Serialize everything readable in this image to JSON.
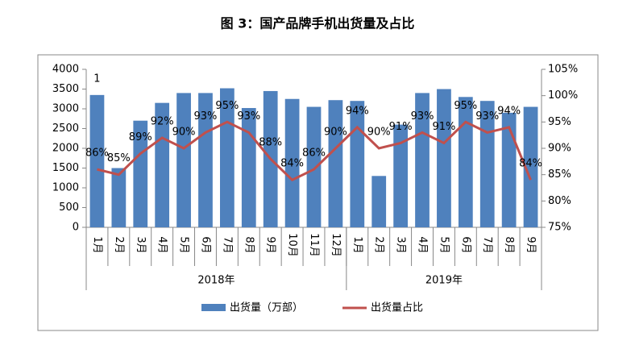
{
  "chart_data": {
    "type": "bar-line",
    "title": "图 3：国产品牌手机出货量及占比",
    "annotation": "1",
    "category_groups": [
      {
        "name": "2018年",
        "categories": [
          "1月",
          "2月",
          "3月",
          "4月",
          "5月",
          "6月",
          "7月",
          "8月",
          "9月",
          "10月",
          "11月",
          "12月"
        ]
      },
      {
        "name": "2019年",
        "categories": [
          "1月",
          "2月",
          "3月",
          "4月",
          "5月",
          "6月",
          "7月",
          "8月",
          "9月"
        ]
      }
    ],
    "series": [
      {
        "name": "出货量（万部）",
        "type": "bar",
        "color": "#4f81bd",
        "values": [
          3350,
          1500,
          2700,
          3150,
          3400,
          3400,
          3520,
          3020,
          3450,
          3250,
          3050,
          3220,
          3200,
          1300,
          2600,
          3400,
          3500,
          3300,
          3200,
          2900,
          3050
        ]
      },
      {
        "name": "出货量占比",
        "type": "line",
        "axis": "y2",
        "color": "#c0504d",
        "values": [
          86,
          85,
          89,
          92,
          90,
          93,
          95,
          93,
          88,
          84,
          86,
          90,
          94,
          90,
          91,
          93,
          91,
          95,
          93,
          94,
          84
        ],
        "value_labels": [
          "86%",
          "85%",
          "89%",
          "92%",
          "90%",
          "93%",
          "95%",
          "93%",
          "88%",
          "84%",
          "86%",
          "90%",
          "94%",
          "90%",
          "91%",
          "93%",
          "91%",
          "95%",
          "93%",
          "94%",
          "84%"
        ]
      }
    ],
    "ylim": [
      0,
      4000
    ],
    "yticks": [
      0,
      500,
      1000,
      1500,
      2000,
      2500,
      3000,
      3500,
      4000
    ],
    "y2lim": [
      75,
      105
    ],
    "y2ticks": [
      {
        "value": 75,
        "label": "75%"
      },
      {
        "value": 80,
        "label": "80%"
      },
      {
        "value": 85,
        "label": "85%"
      },
      {
        "value": 90,
        "label": "90%"
      },
      {
        "value": 95,
        "label": "95%"
      },
      {
        "value": 100,
        "label": "100%"
      },
      {
        "value": 105,
        "label": "105%"
      }
    ],
    "legend": "bottom"
  }
}
